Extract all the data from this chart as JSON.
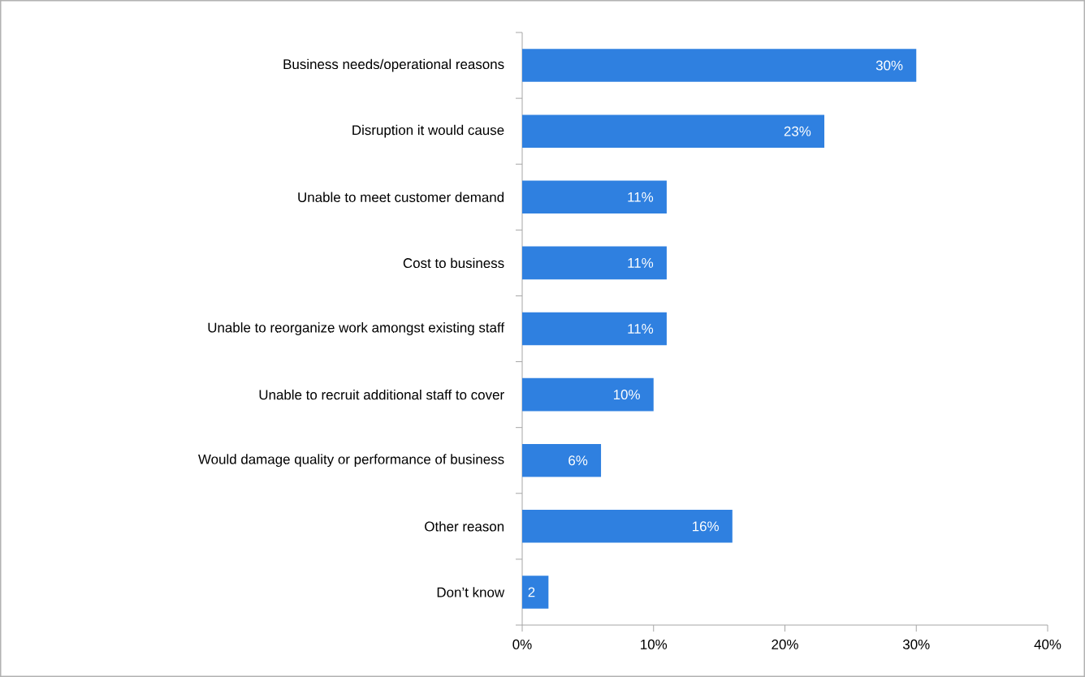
{
  "chart_data": {
    "type": "bar",
    "orientation": "horizontal",
    "categories": [
      "Business needs/operational reasons",
      "Disruption it would cause",
      "Unable to meet customer demand",
      "Cost to business",
      "Unable to reorganize work amongst existing staff",
      "Unable to recruit additional staff to cover",
      "Would damage quality or performance of business",
      "Other reason",
      "Don’t know"
    ],
    "values": [
      30,
      23,
      11,
      11,
      11,
      10,
      6,
      16,
      2
    ],
    "value_labels": [
      "30%",
      "23%",
      "11%",
      "11%",
      "11%",
      "10%",
      "6%",
      "16%",
      "2"
    ],
    "color": "#2f80e0",
    "xlim": [
      0,
      40
    ],
    "xticks": [
      {
        "value": 0,
        "label": "0%"
      },
      {
        "value": 10,
        "label": "10%"
      },
      {
        "value": 20,
        "label": "20%"
      },
      {
        "value": 30,
        "label": "30%"
      },
      {
        "value": 40,
        "label": "40%"
      }
    ]
  }
}
